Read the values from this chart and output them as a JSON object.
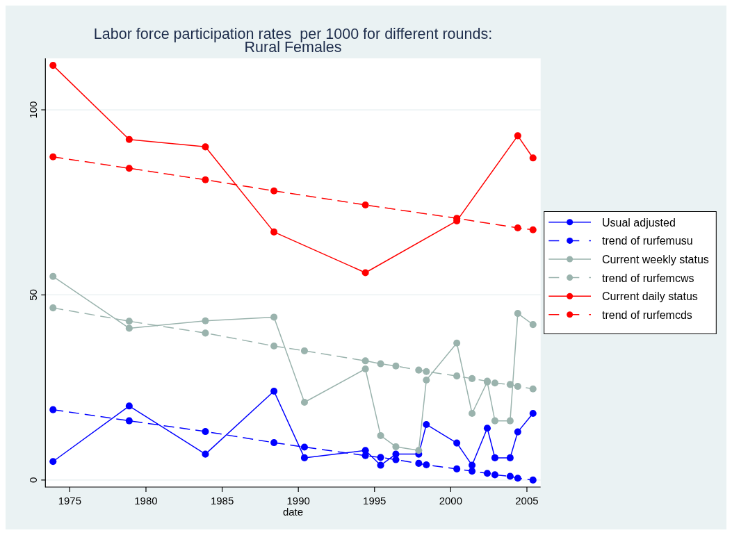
{
  "chart_data": {
    "type": "line",
    "title": "Labor force participation rates  per 1000 for different rounds:\nRural Females",
    "xlabel": "date",
    "xlim": [
      1973.4,
      2005.9
    ],
    "ylim": [
      -1.9,
      113.9
    ],
    "xticks": [
      1975,
      1980,
      1985,
      1990,
      1995,
      2000,
      2005
    ],
    "yticks": [
      0,
      50,
      100
    ],
    "grid": "y",
    "legend": "right",
    "marker": "circle",
    "series": [
      {
        "name": "Usual adjusted",
        "color": "#0000ff",
        "line_style": "solid",
        "x": [
          1973.9,
          1978.9,
          1983.9,
          1988.4,
          1990.4,
          1994.4,
          1995.4,
          1996.4,
          1997.9,
          1998.4,
          2000.4,
          2001.4,
          2002.4,
          2002.9,
          2003.9,
          2004.4,
          2005.4
        ],
        "values": [
          5,
          20,
          7,
          24,
          6,
          8,
          4,
          7,
          7,
          15,
          10,
          4,
          14,
          6,
          6,
          13,
          18
        ]
      },
      {
        "name": "trend of rurfemusu",
        "color": "#0000ff",
        "line_style": "dashed",
        "x": [
          1973.9,
          1978.9,
          1983.9,
          1988.4,
          1990.4,
          1994.4,
          1995.4,
          1996.4,
          1997.9,
          1998.4,
          2000.4,
          2001.4,
          2002.4,
          2002.9,
          2003.9,
          2004.4,
          2005.4
        ],
        "values": [
          19,
          16,
          13.1,
          10.1,
          8.9,
          6.6,
          6.1,
          5.5,
          4.5,
          4.1,
          3,
          2.4,
          1.8,
          1.4,
          1,
          0.5,
          0
        ]
      },
      {
        "name": "Current weekly status",
        "color": "#9ab3ad",
        "line_style": "solid",
        "x": [
          1973.9,
          1978.9,
          1983.9,
          1988.4,
          1990.4,
          1994.4,
          1995.4,
          1996.4,
          1997.9,
          1998.4,
          2000.4,
          2001.4,
          2002.4,
          2002.9,
          2003.9,
          2004.4,
          2005.4
        ],
        "values": [
          55,
          41,
          43,
          44,
          21,
          30,
          12,
          9,
          8,
          27,
          37,
          18,
          26.5,
          16,
          16,
          45,
          42
        ]
      },
      {
        "name": "trend of rurfemcws",
        "color": "#9ab3ad",
        "line_style": "dashed",
        "x": [
          1973.9,
          1978.9,
          1983.9,
          1988.4,
          1990.4,
          1994.4,
          1995.4,
          1996.4,
          1997.9,
          1998.4,
          2000.4,
          2001.4,
          2002.4,
          2002.9,
          2003.9,
          2004.4,
          2005.4
        ],
        "values": [
          46.5,
          42.9,
          39.7,
          36.2,
          34.9,
          32.2,
          31.4,
          30.8,
          29.7,
          29.3,
          28.1,
          27.4,
          26.7,
          26.2,
          25.8,
          25.3,
          24.6
        ]
      },
      {
        "name": "Current daily status",
        "color": "#ff0000",
        "line_style": "solid",
        "x": [
          1973.9,
          1978.9,
          1983.9,
          1988.4,
          1994.4,
          2000.4,
          2004.4,
          2005.4
        ],
        "values": [
          112,
          92,
          90,
          67,
          56,
          70,
          93,
          87
        ]
      },
      {
        "name": "trend of rurfemcds",
        "color": "#ff0000",
        "line_style": "dashed",
        "x": [
          1973.9,
          1978.9,
          1983.9,
          1988.4,
          1994.4,
          2000.4,
          2004.4,
          2005.4
        ],
        "values": [
          87.3,
          84.2,
          81.1,
          78.1,
          74.3,
          70.7,
          68.1,
          67.6
        ]
      }
    ]
  }
}
